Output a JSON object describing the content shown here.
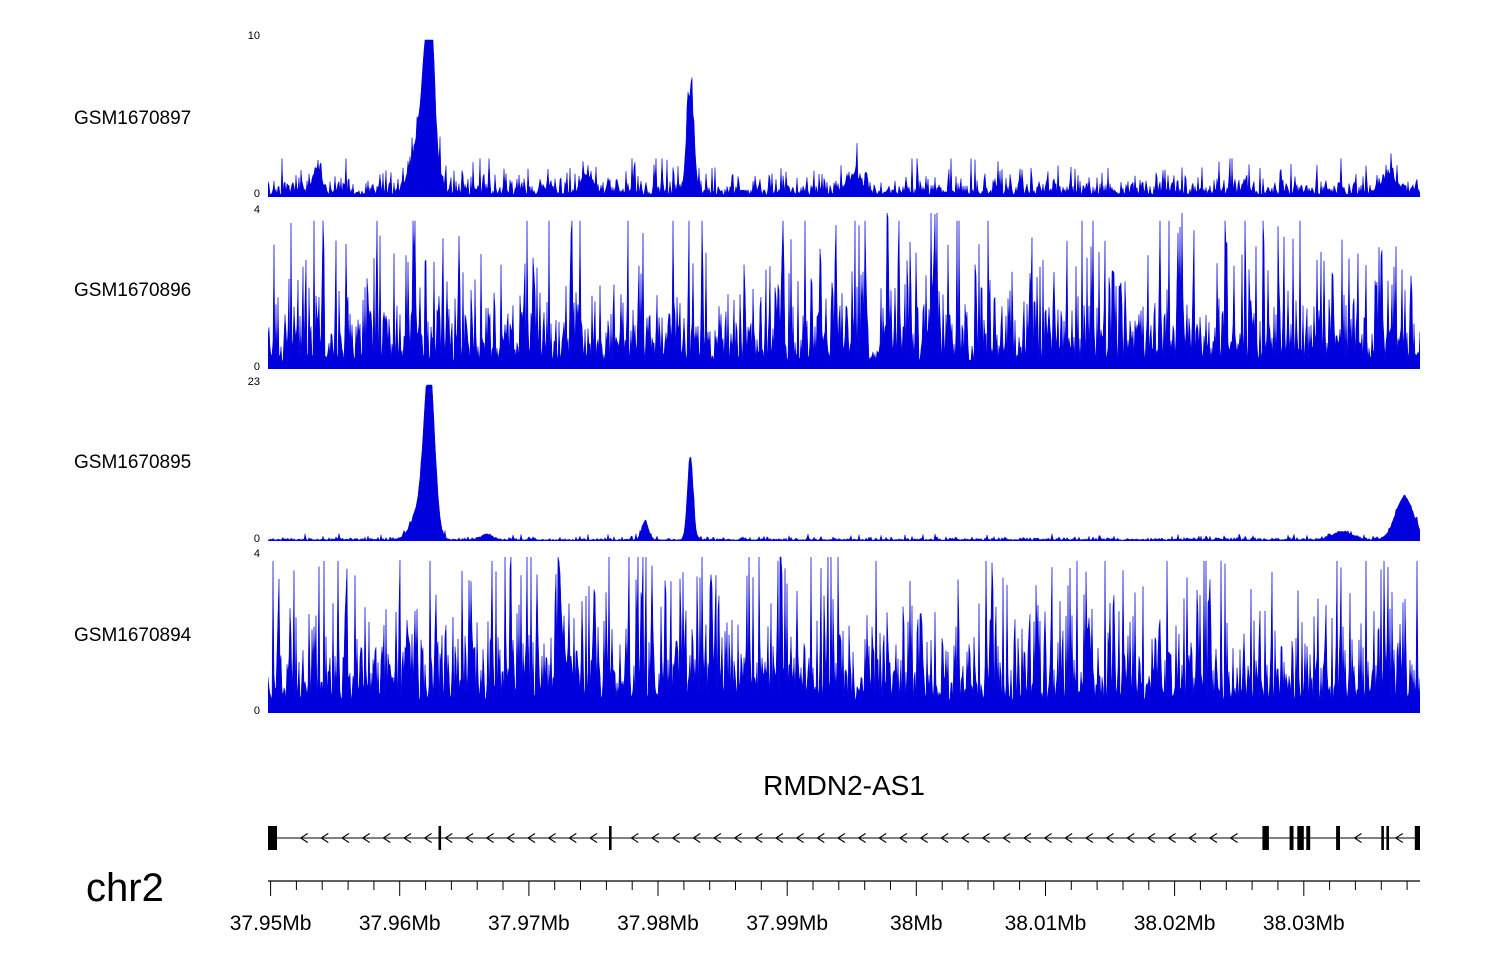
{
  "figure": {
    "background": "#ffffff",
    "signal_color": "#0000dd"
  },
  "chart_data": {
    "type": "area",
    "title": "RMDN2-AS1",
    "description": "Genome browser coverage tracks over chr2:37.95-38.04Mb",
    "x_axis": {
      "chromosome": "chr2",
      "unit": "Mb",
      "range_mb": [
        37.9498,
        38.039
      ],
      "tick_positions_mb": [
        37.95,
        37.96,
        37.97,
        37.98,
        37.99,
        38.0,
        38.01,
        38.02,
        38.03
      ],
      "tick_labels": [
        "37.95Mb",
        "37.96Mb",
        "37.97Mb",
        "37.98Mb",
        "37.99Mb",
        "38Mb",
        "38.01Mb",
        "38.02Mb",
        "38.03Mb"
      ],
      "minor_tick_step_mb": 0.002
    },
    "tracks": [
      {
        "name": "GSM1670897",
        "ylim": [
          0,
          10
        ],
        "color": "#0000dd",
        "signal_model": {
          "seed": 8971,
          "baseline": 0.15,
          "noise_mean": 0.5,
          "noise_clip": 2.3,
          "peaks": [
            {
              "mb": 37.9623,
              "height": 9.7,
              "sigma_mb": 0.00035
            },
            {
              "mb": 37.9618,
              "height": 4.5,
              "sigma_mb": 0.0007
            },
            {
              "mb": 37.9825,
              "height": 6.2,
              "sigma_mb": 0.00028
            },
            {
              "mb": 37.9536,
              "height": 1.6,
              "sigma_mb": 0.0003
            },
            {
              "mb": 37.9745,
              "height": 1.2,
              "sigma_mb": 0.0004
            },
            {
              "mb": 37.9953,
              "height": 1.0,
              "sigma_mb": 0.0005
            },
            {
              "mb": 38.0366,
              "height": 1.0,
              "sigma_mb": 0.0006
            }
          ]
        }
      },
      {
        "name": "GSM1670896",
        "ylim": [
          0,
          4
        ],
        "color": "#0000dd",
        "signal_model": {
          "seed": 8962,
          "baseline": 0.2,
          "noise_mean": 1.0,
          "noise_clip": 3.6,
          "peaks": [
            {
              "mb": 38.0013,
              "height": 1.8,
              "sigma_mb": 0.0002
            },
            {
              "mb": 37.9978,
              "height": 1.2,
              "sigma_mb": 0.00015
            },
            {
              "mb": 38.0205,
              "height": 1.2,
              "sigma_mb": 0.0002
            }
          ]
        }
      },
      {
        "name": "GSM1670895",
        "ylim": [
          0,
          23
        ],
        "color": "#0000dd",
        "signal_model": {
          "seed": 8953,
          "baseline": 0.12,
          "noise_mean": 0.18,
          "noise_clip": 1.0,
          "peaks": [
            {
              "mb": 37.9623,
              "height": 22.5,
              "sigma_mb": 0.0004
            },
            {
              "mb": 37.9617,
              "height": 5.0,
              "sigma_mb": 0.0007
            },
            {
              "mb": 37.9825,
              "height": 12.3,
              "sigma_mb": 0.00022
            },
            {
              "mb": 37.979,
              "height": 2.8,
              "sigma_mb": 0.00025
            },
            {
              "mb": 38.0378,
              "height": 6.3,
              "sigma_mb": 0.0007
            },
            {
              "mb": 38.033,
              "height": 1.2,
              "sigma_mb": 0.0008
            },
            {
              "mb": 37.9667,
              "height": 0.8,
              "sigma_mb": 0.0004
            }
          ]
        }
      },
      {
        "name": "GSM1670894",
        "ylim": [
          0,
          4
        ],
        "color": "#0000dd",
        "signal_model": {
          "seed": 8944,
          "baseline": 0.3,
          "noise_mean": 1.0,
          "noise_clip": 3.6,
          "regions": [
            {
              "from_mb": 37.968,
              "to_mb": 37.994,
              "mult": 1.3
            }
          ],
          "peaks": [
            {
              "mb": 37.9726,
              "height": 1.5,
              "sigma_mb": 0.0002
            },
            {
              "mb": 38.0133,
              "height": 1.8,
              "sigma_mb": 0.00018
            },
            {
              "mb": 37.9606,
              "height": 1.2,
              "sigma_mb": 0.0002
            }
          ]
        }
      }
    ],
    "gene_track": {
      "title": "RMDN2-AS1",
      "gene": "RMDN2-AS1",
      "strand": "-",
      "arrow_spacing_mb": 0.0016,
      "exons_mb": [
        {
          "start": 37.9498,
          "end": 37.9505
        },
        {
          "start": 37.963,
          "end": 37.9632
        },
        {
          "start": 37.9762,
          "end": 37.9764
        },
        {
          "start": 38.0268,
          "end": 38.0273
        },
        {
          "start": 38.0289,
          "end": 38.0292
        },
        {
          "start": 38.0295,
          "end": 38.03
        },
        {
          "start": 38.0302,
          "end": 38.0305
        },
        {
          "start": 38.0325,
          "end": 38.0328
        },
        {
          "start": 38.036,
          "end": 38.0362
        },
        {
          "start": 38.0364,
          "end": 38.0366
        },
        {
          "start": 38.0386,
          "end": 38.039
        }
      ]
    }
  }
}
